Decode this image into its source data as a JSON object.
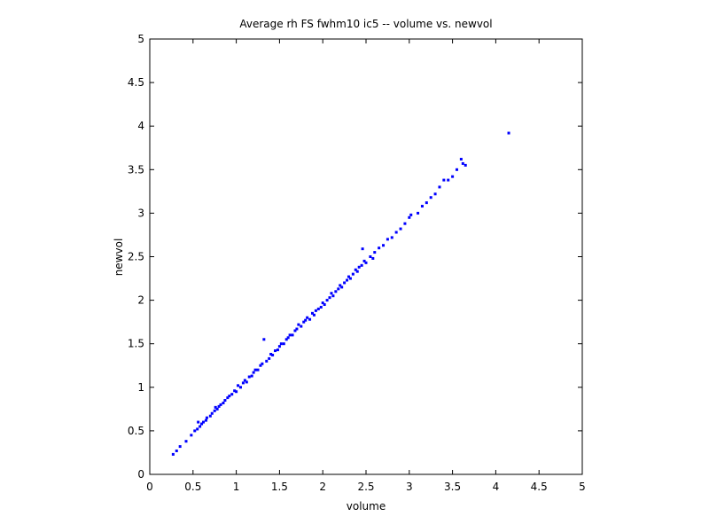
{
  "chart_data": {
    "type": "scatter",
    "title": "Average rh FS fwhm10 ic5 -- volume vs. newvol",
    "x_label": "volume",
    "y_label": "newvol",
    "xlim": [
      0,
      5
    ],
    "ylim": [
      0,
      5
    ],
    "xticks": [
      0,
      0.5,
      1,
      1.5,
      2,
      2.5,
      3,
      3.5,
      4,
      4.5,
      5
    ],
    "yticks": [
      0,
      0.5,
      1,
      1.5,
      2,
      2.5,
      3,
      3.5,
      4,
      4.5,
      5
    ],
    "color": "#0000ff",
    "x": [
      0.27,
      0.31,
      0.35,
      0.42,
      0.48,
      0.52,
      0.55,
      0.56,
      0.58,
      0.6,
      0.62,
      0.65,
      0.66,
      0.7,
      0.72,
      0.75,
      0.76,
      0.78,
      0.8,
      0.82,
      0.85,
      0.87,
      0.9,
      0.92,
      0.95,
      0.98,
      1.0,
      1.02,
      1.05,
      1.08,
      1.1,
      1.12,
      1.15,
      1.18,
      1.2,
      1.22,
      1.25,
      1.28,
      1.3,
      1.32,
      1.35,
      1.38,
      1.4,
      1.42,
      1.45,
      1.48,
      1.5,
      1.52,
      1.55,
      1.58,
      1.6,
      1.62,
      1.65,
      1.68,
      1.7,
      1.72,
      1.75,
      1.78,
      1.8,
      1.82,
      1.85,
      1.88,
      1.9,
      1.92,
      1.95,
      1.98,
      2.0,
      2.02,
      2.05,
      2.08,
      2.1,
      2.12,
      2.15,
      2.18,
      2.2,
      2.22,
      2.25,
      2.28,
      2.3,
      2.32,
      2.35,
      2.38,
      2.4,
      2.42,
      2.45,
      2.46,
      2.48,
      2.5,
      2.55,
      2.58,
      2.6,
      2.65,
      2.7,
      2.75,
      2.8,
      2.85,
      2.9,
      2.95,
      3.0,
      3.02,
      3.1,
      3.15,
      3.2,
      3.25,
      3.3,
      3.35,
      3.4,
      3.45,
      3.5,
      3.55,
      3.6,
      3.62,
      3.65,
      4.15
    ],
    "y": [
      0.23,
      0.27,
      0.32,
      0.38,
      0.45,
      0.5,
      0.52,
      0.6,
      0.55,
      0.58,
      0.6,
      0.62,
      0.65,
      0.67,
      0.7,
      0.73,
      0.77,
      0.75,
      0.78,
      0.8,
      0.82,
      0.85,
      0.88,
      0.9,
      0.92,
      0.96,
      0.95,
      1.02,
      1.0,
      1.05,
      1.08,
      1.06,
      1.12,
      1.13,
      1.17,
      1.2,
      1.2,
      1.25,
      1.27,
      1.55,
      1.3,
      1.33,
      1.38,
      1.37,
      1.42,
      1.43,
      1.47,
      1.5,
      1.5,
      1.55,
      1.57,
      1.6,
      1.6,
      1.65,
      1.67,
      1.72,
      1.7,
      1.75,
      1.77,
      1.8,
      1.78,
      1.85,
      1.83,
      1.88,
      1.9,
      1.92,
      1.97,
      1.95,
      2.0,
      2.03,
      2.08,
      2.05,
      2.1,
      2.13,
      2.17,
      2.15,
      2.2,
      2.23,
      2.27,
      2.25,
      2.3,
      2.35,
      2.33,
      2.38,
      2.4,
      2.59,
      2.45,
      2.43,
      2.5,
      2.48,
      2.55,
      2.6,
      2.63,
      2.7,
      2.72,
      2.78,
      2.82,
      2.88,
      2.95,
      2.98,
      3.0,
      3.08,
      3.12,
      3.18,
      3.22,
      3.3,
      3.38,
      3.38,
      3.42,
      3.5,
      3.62,
      3.57,
      3.55,
      3.92
    ]
  }
}
